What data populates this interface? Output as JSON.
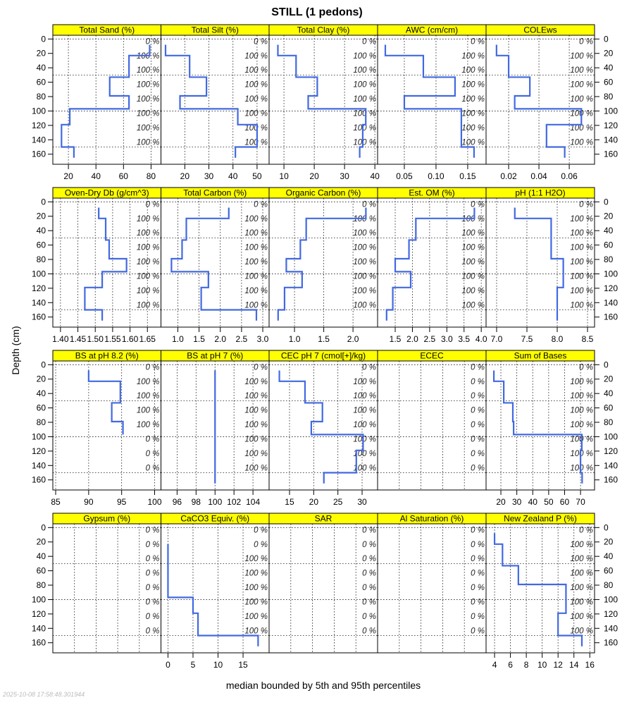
{
  "title": "STILL (1 pedons)",
  "ylabel": "Depth (cm)",
  "xlabel": "median bounded by 5th and 95th percentiles",
  "timestamp": "2025-10-08 17:58:48.301944",
  "colors": {
    "strip": "#FFFF00",
    "line": "#4169E1"
  },
  "chart_data": {
    "type": "line",
    "y_ticks": [
      "0",
      "20",
      "40",
      "60",
      "80",
      "100",
      "120",
      "140",
      "160"
    ],
    "ylim": [
      -5.2,
      174
    ],
    "horizon_tops": [
      8,
      23,
      53,
      79,
      97,
      119,
      150
    ],
    "horizon_bottoms": [
      23,
      53,
      79,
      97,
      119,
      150,
      165
    ],
    "horizontal_grid_depths": [
      0,
      50,
      100,
      150
    ],
    "pct_label_depths": [
      0,
      20,
      40,
      60,
      80,
      100,
      120,
      140
    ],
    "panels": [
      {
        "title": "Total Sand (%)",
        "xlim": [
          8.7,
          87.2
        ],
        "ticks": [
          "20",
          "40",
          "60",
          "80"
        ],
        "values": [
          79,
          64,
          50,
          64,
          21,
          15,
          24
        ],
        "pct": [
          "0 %",
          "100 %",
          "100 %",
          "100 %",
          "100 %",
          "100 %",
          "100 %",
          "100 %"
        ]
      },
      {
        "title": "Total Silt (%)",
        "xlim": [
          10.1,
          55.0
        ],
        "ticks": [
          "20",
          "30",
          "40",
          "50"
        ],
        "values": [
          12,
          22,
          29,
          18,
          42,
          50,
          41
        ],
        "pct": [
          "0 %",
          "100 %",
          "100 %",
          "100 %",
          "100 %",
          "100 %",
          "100 %",
          "100 %"
        ]
      },
      {
        "title": "Total Clay (%)",
        "xlim": [
          5.1,
          40.9
        ],
        "ticks": [
          "10",
          "20",
          "30",
          "40"
        ],
        "values": [
          8,
          14,
          21,
          18,
          37,
          36,
          35
        ],
        "pct": [
          "0 %",
          "100 %",
          "100 %",
          "100 %",
          "100 %",
          "100 %",
          "100 %",
          "100 %"
        ]
      },
      {
        "title": "AWC (cm/cm)",
        "xlim": [
          0.0078,
          0.179
        ],
        "ticks": [
          "0.05",
          "0.10",
          "0.15"
        ],
        "values": [
          0.02,
          0.08,
          0.13,
          0.05,
          0.14,
          0.14,
          0.16
        ],
        "pct": [
          "0 %",
          "100 %",
          "100 %",
          "100 %",
          "100 %",
          "100 %",
          "100 %",
          "100 %"
        ]
      },
      {
        "title": "COLEws",
        "xlim": [
          0.0051,
          0.0767
        ],
        "ticks": [
          "0.02",
          "0.04",
          "0.06"
        ],
        "values": [
          0.012,
          0.02,
          0.034,
          0.024,
          0.068,
          0.045,
          0.057
        ],
        "pct": [
          "0 %",
          "100 %",
          "100 %",
          "100 %",
          "100 %",
          "100 %",
          "100 %",
          "100 %"
        ]
      },
      {
        "title": "Oven-Dry Db (g/cm^3)",
        "xlim": [
          1.378,
          1.689
        ],
        "ticks": [
          "1.40",
          "1.45",
          "1.50",
          "1.55",
          "1.60",
          "1.65"
        ],
        "values": [
          1.51,
          1.53,
          1.54,
          1.59,
          1.52,
          1.47,
          1.52
        ],
        "pct": [
          "0 %",
          "100 %",
          "100 %",
          "100 %",
          "100 %",
          "100 %",
          "100 %",
          "100 %"
        ]
      },
      {
        "title": "Total Carbon (%)",
        "xlim": [
          0.603,
          3.149
        ],
        "ticks": [
          "1.0",
          "1.5",
          "2.0",
          "2.5",
          "3.0"
        ],
        "values": [
          2.2,
          1.2,
          1.1,
          0.85,
          1.72,
          1.55,
          2.85
        ],
        "pct": [
          "0 %",
          "100 %",
          "100 %",
          "100 %",
          "100 %",
          "100 %",
          "100 %",
          "100 %"
        ]
      },
      {
        "title": "Organic Carbon (%)",
        "xlim": [
          0.566,
          2.42
        ],
        "ticks": [
          "1.0",
          "1.5",
          "2.0"
        ],
        "values": [
          2.22,
          1.2,
          1.1,
          0.86,
          1.13,
          0.83,
          0.72
        ],
        "pct": [
          "0 %",
          "100 %",
          "100 %",
          "100 %",
          "100 %",
          "100 %",
          "100 %",
          "100 %"
        ]
      },
      {
        "title": "Est. OM (%)",
        "xlim": [
          0.988,
          4.14
        ],
        "ticks": [
          "1.5",
          "2.0",
          "2.5",
          "3.0",
          "3.5",
          "4.0"
        ],
        "values": [
          3.8,
          2.1,
          1.9,
          1.5,
          1.95,
          1.43,
          1.25
        ],
        "pct": [
          "0 %",
          "100 %",
          "100 %",
          "100 %",
          "100 %",
          "100 %",
          "100 %",
          "100 %"
        ]
      },
      {
        "title": "pH (1:1 H2O)",
        "xlim": [
          6.826,
          8.616
        ],
        "ticks": [
          "7.0",
          "7.5",
          "8.0",
          "8.5"
        ],
        "values": [
          7.3,
          7.9,
          7.9,
          8.1,
          8.1,
          8.0,
          8.0
        ],
        "pct": [
          "0 %",
          "100 %",
          "100 %",
          "100 %",
          "100 %",
          "100 %",
          "100 %",
          "100 %"
        ]
      },
      {
        "title": "BS at pH 8.2 (%)",
        "xlim": [
          84.57,
          100.96
        ],
        "ticks": [
          "85",
          "90",
          "95",
          "100"
        ],
        "values": [
          90,
          94.8,
          93.5,
          95.2,
          null,
          null,
          null
        ],
        "pct": [
          "0 %",
          "100 %",
          "100 %",
          "100 %",
          "100 %",
          "0 %",
          "0 %",
          "0 %"
        ]
      },
      {
        "title": "BS at pH 7 (%)",
        "xlim": [
          94.3,
          105.7
        ],
        "ticks": [
          "96",
          "98",
          "100",
          "102",
          "104"
        ],
        "values": [
          100,
          100,
          100,
          100,
          100,
          100,
          100
        ],
        "pct": [
          "0 %",
          "100 %",
          "100 %",
          "100 %",
          "100 %",
          "100 %",
          "100 %",
          "100 %"
        ]
      },
      {
        "title": "CEC pH 7 (cmol[+]/kg)",
        "xlim": [
          10.78,
          33.2
        ],
        "ticks": [
          "15",
          "20",
          "25",
          "30"
        ],
        "values": [
          12.9,
          18.2,
          21.8,
          19.5,
          30.2,
          28.8,
          22.1
        ],
        "pct": [
          "0 %",
          "100 %",
          "100 %",
          "100 %",
          "100 %",
          "100 %",
          "100 %",
          "100 %"
        ]
      },
      {
        "title": "ECEC",
        "xlim": null,
        "ticks": [],
        "values": [
          null,
          null,
          null,
          null,
          null,
          null,
          null
        ],
        "pct": [
          "0 %",
          "0 %",
          "0 %",
          "0 %",
          "0 %",
          "0 %",
          "0 %",
          "0 %"
        ]
      },
      {
        "title": "Sum of Bases",
        "xlim": [
          10.7,
          78.8
        ],
        "ticks": [
          "20",
          "30",
          "40",
          "50",
          "60",
          "70"
        ],
        "values": [
          15.6,
          21.8,
          27.5,
          28,
          70.8,
          70,
          71
        ],
        "pct": [
          "0 %",
          "100 %",
          "100 %",
          "100 %",
          "100 %",
          "100 %",
          "100 %",
          "100 %"
        ]
      },
      {
        "title": "Gypsum (%)",
        "xlim": null,
        "ticks": [],
        "values": [
          null,
          null,
          null,
          null,
          null,
          null,
          null
        ],
        "pct": [
          "0 %",
          "0 %",
          "0 %",
          "0 %",
          "0 %",
          "0 %",
          "0 %",
          "0 %"
        ]
      },
      {
        "title": "CaCO3 Equiv. (%)",
        "xlim": [
          -1.4,
          20.2
        ],
        "ticks": [
          "0",
          "5",
          "10",
          "15"
        ],
        "values": [
          null,
          0,
          0,
          0,
          5,
          6,
          18
        ],
        "pct": [
          "0 %",
          "0 %",
          "100 %",
          "100 %",
          "100 %",
          "100 %",
          "100 %",
          "100 %"
        ]
      },
      {
        "title": "SAR",
        "xlim": null,
        "ticks": [],
        "values": [
          null,
          null,
          null,
          null,
          null,
          null,
          null
        ],
        "pct": [
          "0 %",
          "0 %",
          "0 %",
          "0 %",
          "0 %",
          "0 %",
          "0 %",
          "0 %"
        ]
      },
      {
        "title": "Al Saturation (%)",
        "xlim": null,
        "ticks": [],
        "values": [
          null,
          null,
          null,
          null,
          null,
          null,
          null
        ],
        "pct": [
          "0 %",
          "0 %",
          "0 %",
          "0 %",
          "0 %",
          "0 %",
          "0 %",
          "0 %"
        ]
      },
      {
        "title": "New Zealand P (%)",
        "xlim": [
          2.93,
          16.6
        ],
        "ticks": [
          "4",
          "6",
          "8",
          "10",
          "12",
          "14",
          "16"
        ],
        "values": [
          4,
          5,
          7,
          13,
          13,
          12,
          15
        ],
        "pct": [
          "0 %",
          "100 %",
          "100 %",
          "100 %",
          "100 %",
          "100 %",
          "100 %",
          "100 %"
        ]
      }
    ]
  }
}
